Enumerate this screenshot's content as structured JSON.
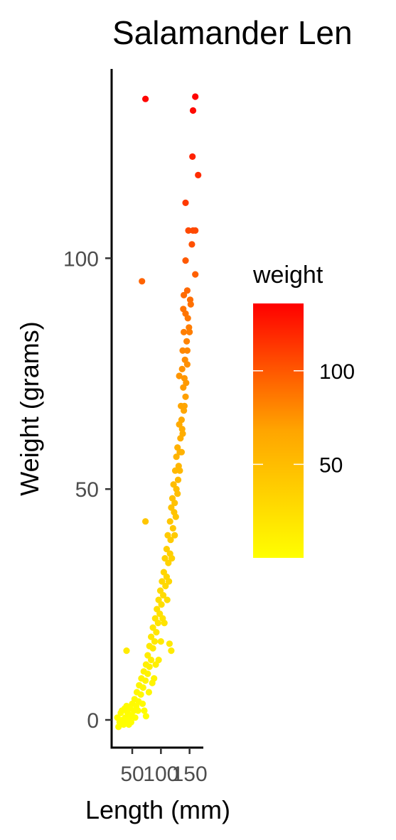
{
  "chart_data": {
    "type": "scatter",
    "title": "Salamander Len",
    "xlabel": "Length (mm)",
    "ylabel": "Weight (grams)",
    "xlim": [
      14,
      174
    ],
    "ylim": [
      -6,
      141
    ],
    "xticks": [
      50,
      100,
      150
    ],
    "yticks": [
      0,
      50,
      100
    ],
    "grid": false,
    "legend": {
      "title": "weight",
      "placement": "right",
      "kind": "colorbar",
      "ticks": [
        50,
        100
      ],
      "range": [
        0,
        136
      ],
      "color_low": "#ffff00",
      "color_high": "#ff0000"
    },
    "points": [
      [
        73,
        134.5
      ],
      [
        160,
        135
      ],
      [
        156,
        132
      ],
      [
        155,
        122
      ],
      [
        165,
        118
      ],
      [
        143,
        112
      ],
      [
        160,
        106
      ],
      [
        156,
        106
      ],
      [
        148,
        106
      ],
      [
        154,
        103
      ],
      [
        143,
        99.5
      ],
      [
        160,
        96.5
      ],
      [
        67,
        95
      ],
      [
        140,
        92
      ],
      [
        146,
        93
      ],
      [
        151,
        91
      ],
      [
        152,
        90
      ],
      [
        143,
        88
      ],
      [
        139,
        89
      ],
      [
        147,
        87
      ],
      [
        149,
        85
      ],
      [
        140,
        84
      ],
      [
        145,
        82
      ],
      [
        138,
        80
      ],
      [
        142,
        78
      ],
      [
        146,
        77
      ],
      [
        137,
        76
      ],
      [
        141,
        74
      ],
      [
        132,
        74.5
      ],
      [
        139,
        72
      ],
      [
        143,
        70
      ],
      [
        135,
        68
      ],
      [
        140,
        67
      ],
      [
        136,
        65
      ],
      [
        132,
        64
      ],
      [
        138,
        62
      ],
      [
        134,
        61
      ],
      [
        129,
        59
      ],
      [
        133,
        58
      ],
      [
        127,
        57
      ],
      [
        131,
        55
      ],
      [
        125,
        54
      ],
      [
        130,
        52
      ],
      [
        122,
        51
      ],
      [
        127,
        50
      ],
      [
        120,
        48
      ],
      [
        124,
        47
      ],
      [
        118,
        46
      ],
      [
        123,
        45
      ],
      [
        73,
        43
      ],
      [
        116,
        43
      ],
      [
        121,
        41.5
      ],
      [
        112,
        40
      ],
      [
        117,
        39
      ],
      [
        110,
        37
      ],
      [
        116,
        36
      ],
      [
        107,
        35
      ],
      [
        113,
        34
      ],
      [
        105,
        32
      ],
      [
        110,
        31
      ],
      [
        102,
        30
      ],
      [
        108,
        29
      ],
      [
        99,
        28
      ],
      [
        104,
        27
      ],
      [
        96,
        26
      ],
      [
        101,
        25
      ],
      [
        93,
        24
      ],
      [
        98,
        23
      ],
      [
        90,
        22
      ],
      [
        95,
        21
      ],
      [
        86,
        20
      ],
      [
        92,
        19
      ],
      [
        83,
        18
      ],
      [
        89,
        17
      ],
      [
        80,
        16
      ],
      [
        86,
        15.5
      ],
      [
        115,
        16.5
      ],
      [
        118,
        15
      ],
      [
        40,
        15
      ],
      [
        77,
        14
      ],
      [
        83,
        13
      ],
      [
        74,
        12
      ],
      [
        80,
        11.5
      ],
      [
        70,
        10.5
      ],
      [
        77,
        10
      ],
      [
        66,
        9
      ],
      [
        73,
        8.5
      ],
      [
        62,
        7.5
      ],
      [
        69,
        7
      ],
      [
        58,
        6
      ],
      [
        65,
        5.5
      ],
      [
        54,
        4.5
      ],
      [
        61,
        4
      ],
      [
        50,
        3.5
      ],
      [
        57,
        3
      ],
      [
        46,
        2.5
      ],
      [
        53,
        2
      ],
      [
        42,
        1.5
      ],
      [
        49,
        1
      ],
      [
        38,
        0.5
      ],
      [
        45,
        0.5
      ],
      [
        33,
        0
      ],
      [
        40,
        0
      ],
      [
        28,
        -0.5
      ],
      [
        35,
        -1
      ],
      [
        24,
        0.5
      ],
      [
        30,
        1.5
      ],
      [
        37,
        2.5
      ],
      [
        26,
        -1.5
      ],
      [
        44,
        -1
      ],
      [
        71,
        2
      ],
      [
        74,
        0.8
      ],
      [
        68,
        3.5
      ],
      [
        79,
        6
      ],
      [
        88,
        9
      ],
      [
        96,
        13
      ],
      [
        100,
        17
      ],
      [
        106,
        21
      ],
      [
        111,
        26
      ],
      [
        114,
        30
      ],
      [
        119,
        35
      ],
      [
        124,
        40
      ],
      [
        126,
        44
      ],
      [
        129,
        49
      ],
      [
        133,
        54
      ],
      [
        136,
        58
      ],
      [
        137,
        63
      ],
      [
        141,
        68
      ],
      [
        144,
        73
      ],
      [
        146,
        80
      ],
      [
        150,
        84
      ],
      [
        103,
        22
      ],
      [
        91,
        12
      ],
      [
        85,
        8
      ],
      [
        60,
        2
      ],
      [
        55,
        0.5
      ],
      [
        48,
        -0.5
      ],
      [
        32,
        2
      ],
      [
        28,
        0
      ],
      [
        40,
        3
      ]
    ]
  }
}
